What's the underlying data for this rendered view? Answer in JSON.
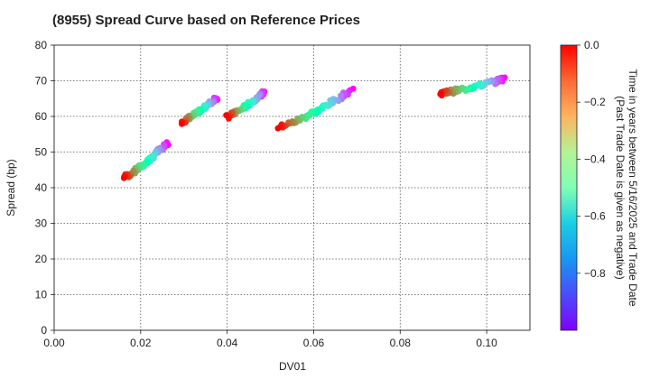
{
  "chart_data": {
    "type": "scatter",
    "title": "(8955)   Spread Curve based on Reference Prices",
    "xlabel": "DV01",
    "ylabel": "Spread (bp)",
    "xlim": [
      0.0,
      0.11
    ],
    "ylim": [
      0,
      80
    ],
    "x_ticks": [
      "0.00",
      "0.02",
      "0.04",
      "0.06",
      "0.08",
      "0.10"
    ],
    "x_tick_values": [
      0.0,
      0.02,
      0.04,
      0.06,
      0.08,
      0.1
    ],
    "y_ticks": [
      "0",
      "10",
      "20",
      "30",
      "40",
      "50",
      "60",
      "70",
      "80"
    ],
    "y_tick_values": [
      0,
      10,
      20,
      30,
      40,
      50,
      60,
      70,
      80
    ],
    "grid": true,
    "colorbar": {
      "label_line1": "Time in years between 5/16/2025 and Trade Date",
      "label_line2": "(Past Trade Date is given as negative)",
      "ticks": [
        "0.0",
        "−0.2",
        "−0.4",
        "−0.6",
        "−0.8"
      ],
      "tick_values": [
        0.0,
        -0.2,
        -0.4,
        -0.6,
        -0.8
      ],
      "range": [
        -1.0,
        0.0
      ],
      "colormap": "rainbow"
    },
    "segments": [
      {
        "x_start": 0.0162,
        "x_end": 0.0262,
        "y_start": 43.0,
        "y_end": 52.5,
        "t_start": 0.0,
        "t_end": -1.0
      },
      {
        "x_start": 0.0295,
        "x_end": 0.0378,
        "y_start": 58.5,
        "y_end": 65.5,
        "t_start": 0.0,
        "t_end": -1.0
      },
      {
        "x_start": 0.04,
        "x_end": 0.0488,
        "y_start": 60.0,
        "y_end": 67.0,
        "t_start": 0.0,
        "t_end": -1.0
      },
      {
        "x_start": 0.052,
        "x_end": 0.069,
        "y_start": 57.0,
        "y_end": 67.5,
        "t_start": 0.0,
        "t_end": -1.0
      },
      {
        "x_start": 0.089,
        "x_end": 0.104,
        "y_start": 66.5,
        "y_end": 70.5,
        "t_start": 0.0,
        "t_end": -1.0
      }
    ]
  }
}
